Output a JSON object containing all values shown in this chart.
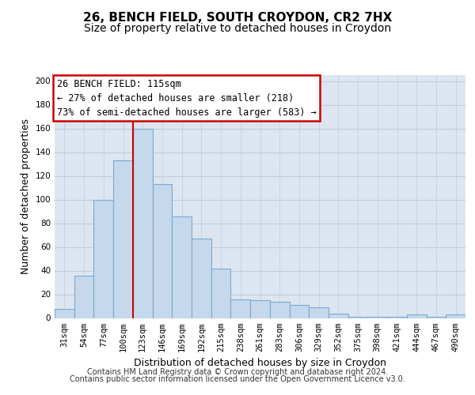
{
  "title": "26, BENCH FIELD, SOUTH CROYDON, CR2 7HX",
  "subtitle": "Size of property relative to detached houses in Croydon",
  "xlabel": "Distribution of detached houses by size in Croydon",
  "ylabel": "Number of detached properties",
  "background_color": "#dde6f0",
  "bar_color": "#c5d8ec",
  "bar_edge_color": "#7aaacf",
  "grid_color": "#c0ccdc",
  "marker_line_color": "#cc0000",
  "categories": [
    "31sqm",
    "54sqm",
    "77sqm",
    "100sqm",
    "123sqm",
    "146sqm",
    "169sqm",
    "192sqm",
    "215sqm",
    "238sqm",
    "261sqm",
    "283sqm",
    "306sqm",
    "329sqm",
    "352sqm",
    "375sqm",
    "398sqm",
    "421sqm",
    "444sqm",
    "467sqm",
    "490sqm"
  ],
  "values": [
    8,
    36,
    100,
    133,
    160,
    113,
    86,
    67,
    42,
    16,
    15,
    14,
    11,
    9,
    4,
    1,
    1,
    1,
    3,
    1,
    3
  ],
  "ylim": [
    0,
    205
  ],
  "yticks": [
    0,
    20,
    40,
    60,
    80,
    100,
    120,
    140,
    160,
    180,
    200
  ],
  "marker_bin_index": 4,
  "annotation_title": "26 BENCH FIELD: 115sqm",
  "annotation_line1": "← 27% of detached houses are smaller (218)",
  "annotation_line2": "73% of semi-detached houses are larger (583) →",
  "annotation_box_color": "#ffffff",
  "annotation_box_edge": "#cc0000",
  "footer_line1": "Contains HM Land Registry data © Crown copyright and database right 2024.",
  "footer_line2": "Contains public sector information licensed under the Open Government Licence v3.0.",
  "title_fontsize": 11,
  "subtitle_fontsize": 10,
  "xlabel_fontsize": 9,
  "ylabel_fontsize": 9,
  "tick_fontsize": 7.5,
  "annotation_fontsize": 8.5,
  "footer_fontsize": 7
}
